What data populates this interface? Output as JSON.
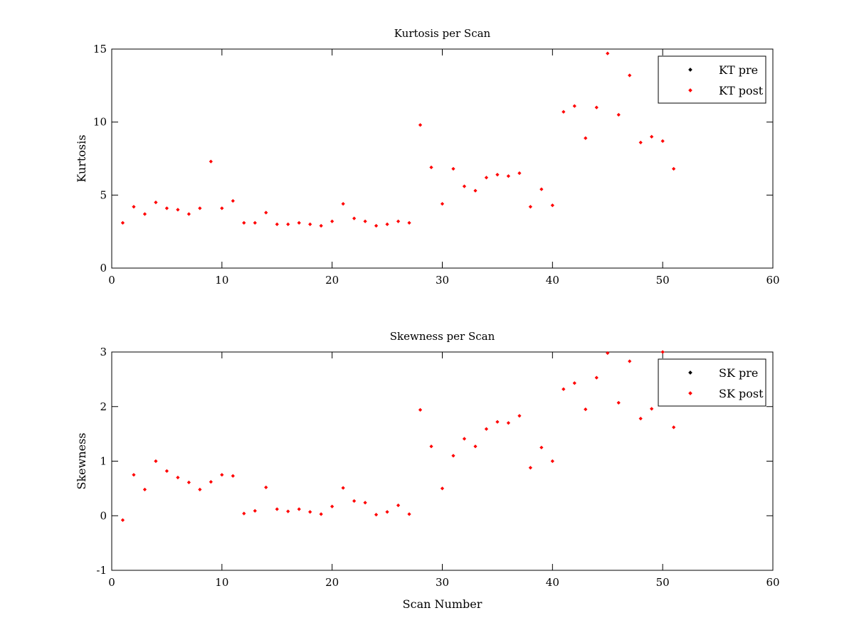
{
  "chart_data": [
    {
      "type": "scatter",
      "title": "Kurtosis per Scan",
      "xlabel": "",
      "ylabel": "Kurtosis",
      "xlim": [
        0,
        60
      ],
      "ylim": [
        0,
        15
      ],
      "xticks": [
        0,
        10,
        20,
        30,
        40,
        50,
        60
      ],
      "yticks": [
        0,
        5,
        10,
        15
      ],
      "grid": false,
      "legend_position": "top-right",
      "series": [
        {
          "name": "KT pre",
          "color": "#000000",
          "x": [],
          "y": []
        },
        {
          "name": "KT post",
          "color": "#ff0000",
          "x": [
            1,
            2,
            3,
            4,
            5,
            6,
            7,
            8,
            9,
            10,
            11,
            12,
            13,
            14,
            15,
            16,
            17,
            18,
            19,
            20,
            21,
            22,
            23,
            24,
            25,
            26,
            27,
            28,
            29,
            30,
            31,
            32,
            33,
            34,
            35,
            36,
            37,
            38,
            39,
            40,
            41,
            42,
            43,
            44,
            45,
            46,
            47,
            48,
            49,
            50,
            51
          ],
          "y": [
            3.1,
            4.2,
            3.7,
            4.5,
            4.1,
            4.0,
            3.7,
            4.1,
            7.3,
            4.1,
            4.6,
            3.1,
            3.1,
            3.8,
            3.0,
            3.0,
            3.1,
            3.0,
            2.9,
            3.2,
            4.4,
            3.4,
            3.2,
            2.9,
            3.0,
            3.2,
            3.1,
            9.8,
            6.9,
            4.4,
            6.8,
            5.6,
            5.3,
            6.2,
            6.4,
            6.3,
            6.5,
            4.2,
            5.4,
            4.3,
            10.7,
            11.1,
            8.9,
            11.0,
            14.7,
            10.5,
            13.2,
            8.6,
            9.0,
            8.7,
            6.8
          ]
        }
      ]
    },
    {
      "type": "scatter",
      "title": "Skewness per Scan",
      "xlabel": "Scan Number",
      "ylabel": "Skewness",
      "xlim": [
        0,
        60
      ],
      "ylim": [
        -1,
        3
      ],
      "xticks": [
        0,
        10,
        20,
        30,
        40,
        50,
        60
      ],
      "yticks": [
        -1,
        0,
        1,
        2,
        3
      ],
      "grid": false,
      "legend_position": "top-right",
      "series": [
        {
          "name": "SK pre",
          "color": "#000000",
          "x": [],
          "y": []
        },
        {
          "name": "SK post",
          "color": "#ff0000",
          "x": [
            1,
            2,
            3,
            4,
            5,
            6,
            7,
            8,
            9,
            10,
            11,
            12,
            13,
            14,
            15,
            16,
            17,
            18,
            19,
            20,
            21,
            22,
            23,
            24,
            25,
            26,
            27,
            28,
            29,
            30,
            31,
            32,
            33,
            34,
            35,
            36,
            37,
            38,
            39,
            40,
            41,
            42,
            43,
            44,
            45,
            46,
            47,
            48,
            49,
            50,
            51
          ],
          "y": [
            -0.08,
            0.75,
            0.48,
            1.0,
            0.82,
            0.7,
            0.61,
            0.48,
            0.62,
            0.75,
            0.73,
            0.04,
            0.09,
            0.52,
            0.12,
            0.08,
            0.12,
            0.07,
            0.03,
            0.17,
            0.51,
            0.27,
            0.24,
            0.02,
            0.07,
            0.19,
            0.03,
            1.94,
            1.27,
            0.5,
            1.1,
            1.41,
            1.27,
            1.59,
            1.72,
            1.7,
            1.83,
            0.88,
            1.25,
            1.0,
            2.32,
            2.43,
            1.95,
            2.53,
            2.98,
            2.07,
            2.83,
            1.78,
            1.96,
            3.0,
            1.62
          ]
        }
      ]
    }
  ]
}
